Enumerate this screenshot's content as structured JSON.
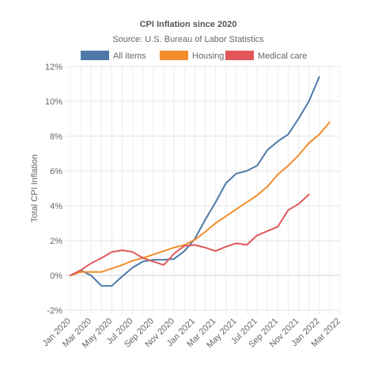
{
  "chart_data": {
    "type": "line",
    "title": "CPI Inflation since 2020",
    "subtitle": "Source: U.S. Bureau of Labor Statistics",
    "ylabel": "Total CPI Inflation",
    "xlabel": "",
    "ylim": [
      -2,
      12
    ],
    "yticks": [
      -2,
      0,
      2,
      4,
      6,
      8,
      10,
      12
    ],
    "ytick_format": "{v}%",
    "grid": true,
    "legend_position": "top",
    "x": [
      "Jan 2020",
      "Feb 2020",
      "Mar 2020",
      "Apr 2020",
      "May 2020",
      "Jun 2020",
      "Jul 2020",
      "Aug 2020",
      "Sep 2020",
      "Oct 2020",
      "Nov 2020",
      "Dec 2020",
      "Jan 2021",
      "Feb 2021",
      "Mar 2021",
      "Apr 2021",
      "May 2021",
      "Jun 2021",
      "Jul 2021",
      "Aug 2021",
      "Sep 2021",
      "Oct 2021",
      "Nov 2021",
      "Dec 2021",
      "Jan 2022",
      "Feb 2022",
      "Mar 2022"
    ],
    "xtick_labels": [
      "Jan 2020",
      "Mar 2020",
      "May 2020",
      "Jul 2020",
      "Sep 2020",
      "Nov 2020",
      "Jan 2021",
      "Mar 2021",
      "May 2021",
      "Jul 2021",
      "Sep 2021",
      "Nov 2021",
      "Jan 2022",
      "Mar 2022"
    ],
    "series": [
      {
        "name": "All items",
        "color": "#4e79a7",
        "values": [
          0.0,
          0.3,
          0.0,
          -0.6,
          -0.6,
          -0.05,
          0.45,
          0.8,
          0.9,
          0.9,
          0.95,
          1.4,
          2.1,
          3.2,
          4.2,
          5.3,
          5.85,
          6.0,
          6.3,
          7.2,
          7.7,
          8.1,
          9.0,
          10.0,
          11.4,
          null,
          null
        ]
      },
      {
        "name": "Housing",
        "color": "#f28e2b",
        "values": [
          0.0,
          0.2,
          0.2,
          0.2,
          0.4,
          0.6,
          0.85,
          1.0,
          1.2,
          1.4,
          1.6,
          1.75,
          2.05,
          2.5,
          3.0,
          3.4,
          3.8,
          4.2,
          4.6,
          5.1,
          5.8,
          6.3,
          6.9,
          7.6,
          8.1,
          8.8,
          null
        ]
      },
      {
        "name": "Medical care",
        "color": "#e15759",
        "values": [
          0.0,
          0.3,
          0.7,
          1.0,
          1.35,
          1.45,
          1.35,
          1.0,
          0.8,
          0.6,
          1.25,
          1.7,
          1.75,
          1.6,
          1.4,
          1.65,
          1.85,
          1.75,
          2.3,
          2.55,
          2.8,
          3.75,
          4.1,
          4.65,
          null,
          null,
          null
        ]
      }
    ]
  }
}
